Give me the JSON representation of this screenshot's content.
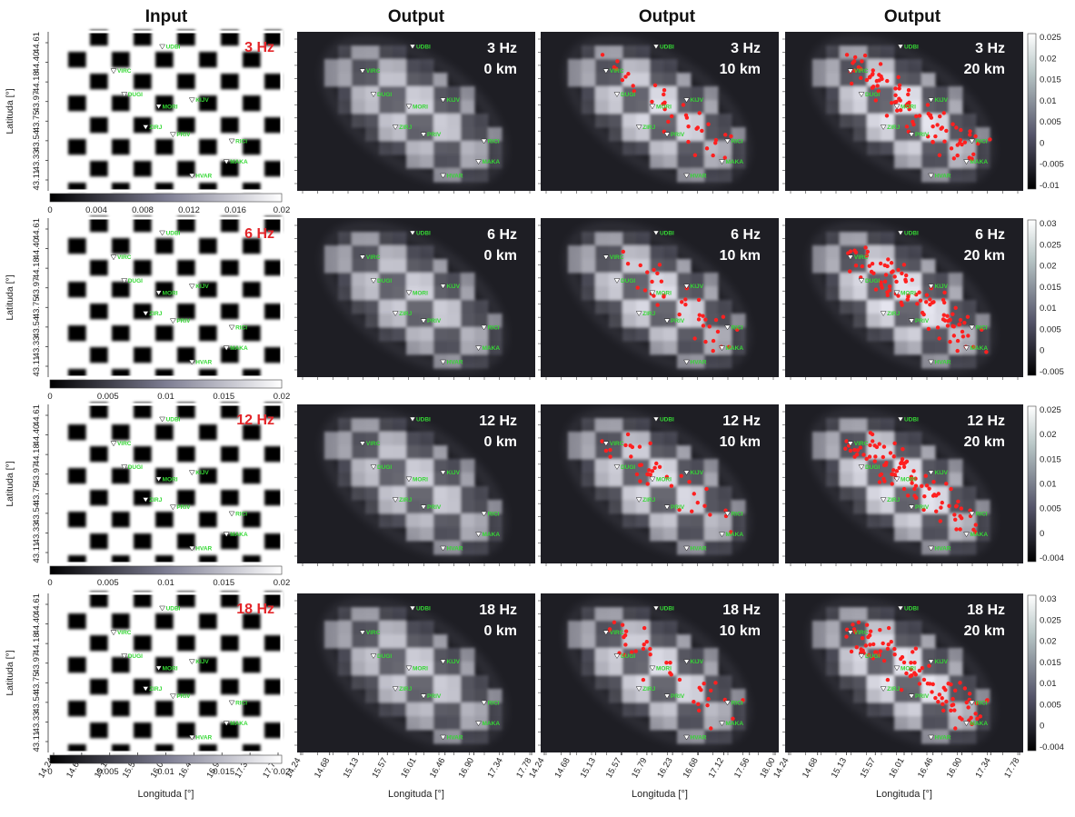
{
  "figure": {
    "column_titles": [
      "Input",
      "Output",
      "Output",
      "Output"
    ],
    "xlabel": "Longituda [°]",
    "ylabel": "Latituda [°]",
    "colors": {
      "title": "#111111",
      "freq_input": "#e3262a",
      "station_label": "#35d835",
      "event_dot": "#ff2020",
      "panel_bg": "#1e1e24",
      "text_on_dark": "#ffffff"
    },
    "yticks": [
      "44.61",
      "44.40",
      "44.18",
      "43.97",
      "43.75",
      "43.54",
      "43.33",
      "43.11"
    ],
    "xticks_col1": [
      "14.24",
      "14.68",
      "15.13",
      "15.57",
      "16.01",
      "16.46",
      "16.90",
      "17.34",
      "17.78"
    ],
    "xticks_col2": [
      "14.24",
      "14.68",
      "15.13",
      "15.57",
      "16.01",
      "16.46",
      "16.90",
      "17.34",
      "17.78"
    ],
    "xticks_col3": [
      "14.24",
      "14.68",
      "15.13",
      "15.57",
      "15.79",
      "16.23",
      "16.68",
      "17.12",
      "17.56",
      "18.00"
    ],
    "xticks_col4": [
      "14.24",
      "14.68",
      "15.13",
      "15.57",
      "16.01",
      "16.46",
      "16.90",
      "17.34",
      "17.78"
    ]
  },
  "chart_data": [
    {
      "type": "heatmap",
      "title": "Input",
      "frequency_labels": [
        "3 Hz",
        "6 Hz",
        "12 Hz",
        "18 Hz"
      ],
      "pattern": "checkerboard",
      "colorbars": [
        {
          "ticks": [
            "0",
            "0.004",
            "0.008",
            "0.012",
            "0.016",
            "0.02"
          ],
          "range": [
            0,
            0.02
          ]
        },
        {
          "ticks": [
            "0",
            "0.005",
            "0.01",
            "0.015",
            "0.02"
          ],
          "range": [
            0,
            0.02
          ]
        },
        {
          "ticks": [
            "0",
            "0.005",
            "0.01",
            "0.015",
            "0.02"
          ],
          "range": [
            0,
            0.02
          ]
        },
        {
          "ticks": [
            "0",
            "0.005",
            "0.01",
            "0.015",
            "0.02"
          ],
          "range": [
            0,
            0.02
          ]
        }
      ]
    },
    {
      "type": "heatmap",
      "title": "Output",
      "rows": [
        {
          "freq": "3 Hz",
          "depth": "0 km"
        },
        {
          "freq": "6 Hz",
          "depth": "0 km"
        },
        {
          "freq": "12 Hz",
          "depth": "0 km"
        },
        {
          "freq": "18 Hz",
          "depth": "0 km"
        }
      ]
    },
    {
      "type": "heatmap",
      "title": "Output",
      "rows": [
        {
          "freq": "3 Hz",
          "depth": "10 km"
        },
        {
          "freq": "6 Hz",
          "depth": "10 km"
        },
        {
          "freq": "12 Hz",
          "depth": "10 km"
        },
        {
          "freq": "18 Hz",
          "depth": "10 km"
        }
      ]
    },
    {
      "type": "heatmap",
      "title": "Output",
      "rows": [
        {
          "freq": "3 Hz",
          "depth": "20 km"
        },
        {
          "freq": "6 Hz",
          "depth": "20 km"
        },
        {
          "freq": "12 Hz",
          "depth": "20 km"
        },
        {
          "freq": "18 Hz",
          "depth": "20 km"
        }
      ],
      "colorbars": [
        {
          "ticks": [
            "0.025",
            "0.02",
            "0.015",
            "0.01",
            "0.005",
            "0",
            "-0.005",
            "-0.01"
          ],
          "range": [
            -0.01,
            0.025
          ]
        },
        {
          "ticks": [
            "0.03",
            "0.025",
            "0.02",
            "0.015",
            "0.01",
            "0.005",
            "0",
            "-0.005"
          ],
          "range": [
            -0.005,
            0.03
          ]
        },
        {
          "ticks": [
            "0.025",
            "0.02",
            "0.015",
            "0.01",
            "0.005",
            "0",
            "-0.004"
          ],
          "range": [
            -0.004,
            0.025
          ]
        },
        {
          "ticks": [
            "0.03",
            "0.025",
            "0.02",
            "0.015",
            "0.01",
            "0.005",
            "0",
            "-0.004"
          ],
          "range": [
            -0.004,
            0.03
          ]
        }
      ]
    }
  ],
  "stations": [
    {
      "name": "UDBI",
      "lon": 15.94,
      "lat": 44.56
    },
    {
      "name": "VIRC",
      "lon": 15.12,
      "lat": 44.3
    },
    {
      "name": "DUGI",
      "lon": 15.3,
      "lat": 44.05
    },
    {
      "name": "KIJV",
      "lon": 16.44,
      "lat": 43.99
    },
    {
      "name": "MORI",
      "lon": 15.88,
      "lat": 43.92
    },
    {
      "name": "ZIRJ",
      "lon": 15.66,
      "lat": 43.7
    },
    {
      "name": "PRIV",
      "lon": 16.12,
      "lat": 43.62
    },
    {
      "name": "RICI",
      "lon": 17.11,
      "lat": 43.55
    },
    {
      "name": "MAKA",
      "lon": 17.02,
      "lat": 43.33
    },
    {
      "name": "HVAR",
      "lon": 16.44,
      "lat": 43.18
    }
  ]
}
